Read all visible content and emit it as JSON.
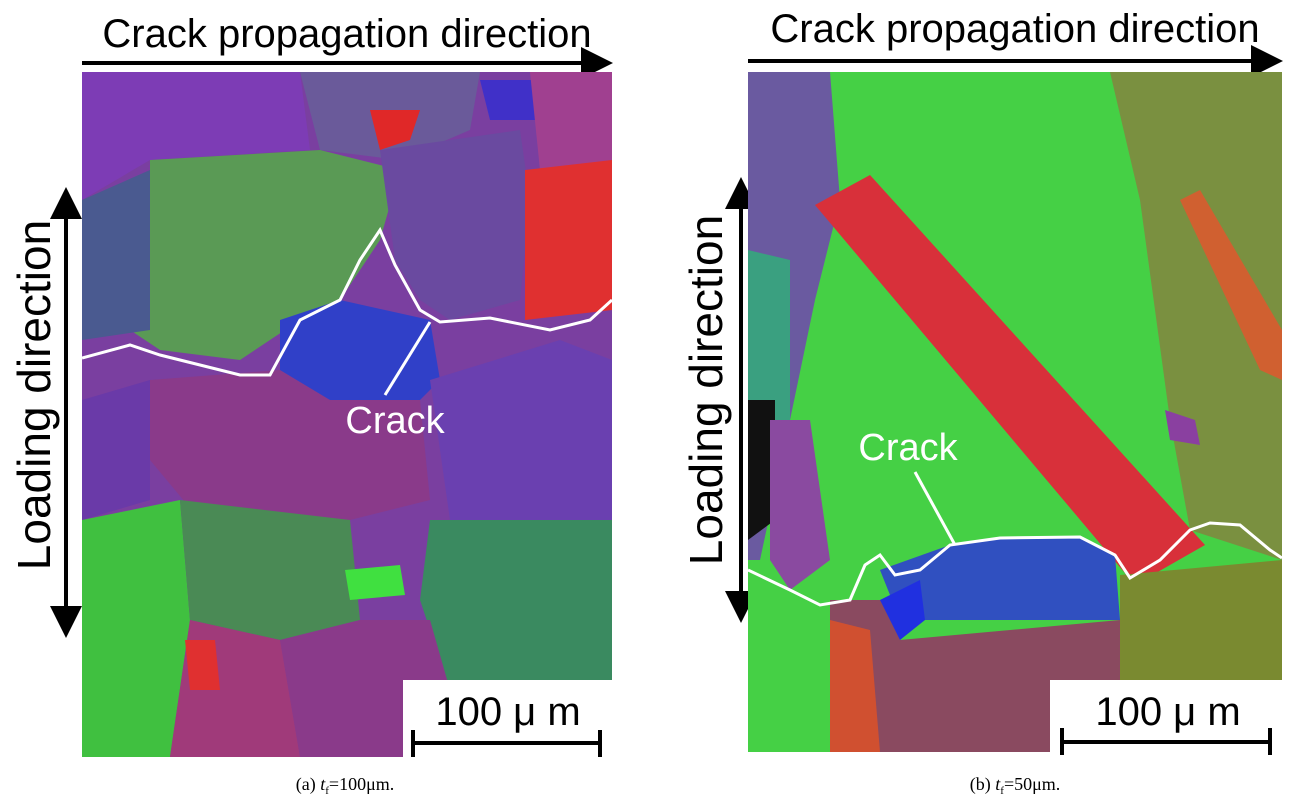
{
  "panels": [
    {
      "direction_label": "Crack propagation direction",
      "loading_label": "Loading direction",
      "crack_label": "Crack",
      "scale_label": "100 μ m",
      "caption": {
        "label": "(a) ",
        "symbol": "t",
        "subscript": "f",
        "value": "=100μm."
      }
    },
    {
      "direction_label": "Crack propagation direction",
      "loading_label": "Loading direction",
      "crack_label": "Crack",
      "scale_label": "100 μ m",
      "caption": {
        "label": "(b) ",
        "symbol": "t",
        "subscript": "f",
        "value": "=50μm."
      }
    }
  ]
}
